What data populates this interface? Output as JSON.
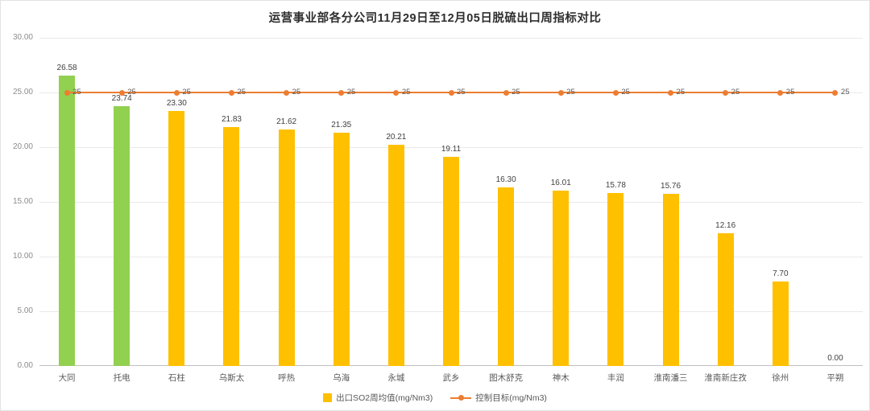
{
  "chart_data": {
    "type": "bar",
    "title": "运营事业部各分公司11月29日至12月05日脱硫出口周指标对比",
    "categories": [
      "大同",
      "托电",
      "石柱",
      "乌斯太",
      "呼热",
      "乌海",
      "永城",
      "武乡",
      "图木舒克",
      "神木",
      "丰润",
      "淮南潘三",
      "淮南新庄孜",
      "徐州",
      "平朔"
    ],
    "series": [
      {
        "name": "出口SO2周均值(mg/Nm3)",
        "type": "bar",
        "values": [
          26.58,
          23.74,
          23.3,
          21.83,
          21.62,
          21.35,
          20.21,
          19.11,
          16.3,
          16.01,
          15.78,
          15.76,
          12.16,
          7.7,
          0.0
        ]
      },
      {
        "name": "控制目标(mg/Nm3)",
        "type": "line",
        "values": [
          25,
          25,
          25,
          25,
          25,
          25,
          25,
          25,
          25,
          25,
          25,
          25,
          25,
          25,
          25
        ],
        "point_label": "25"
      }
    ],
    "ylim": [
      0,
      30
    ],
    "ytick_labels": [
      "0.00",
      "5.00",
      "10.00",
      "15.00",
      "20.00",
      "25.00",
      "30.00"
    ],
    "grid": true,
    "legend_position": "bottom",
    "colors": {
      "bar_default": "#FFC000",
      "bar_highlight": "#92D050",
      "highlight_indices": [
        0,
        1
      ],
      "line": "#ED7D31",
      "marker": "#ED7D31"
    }
  }
}
